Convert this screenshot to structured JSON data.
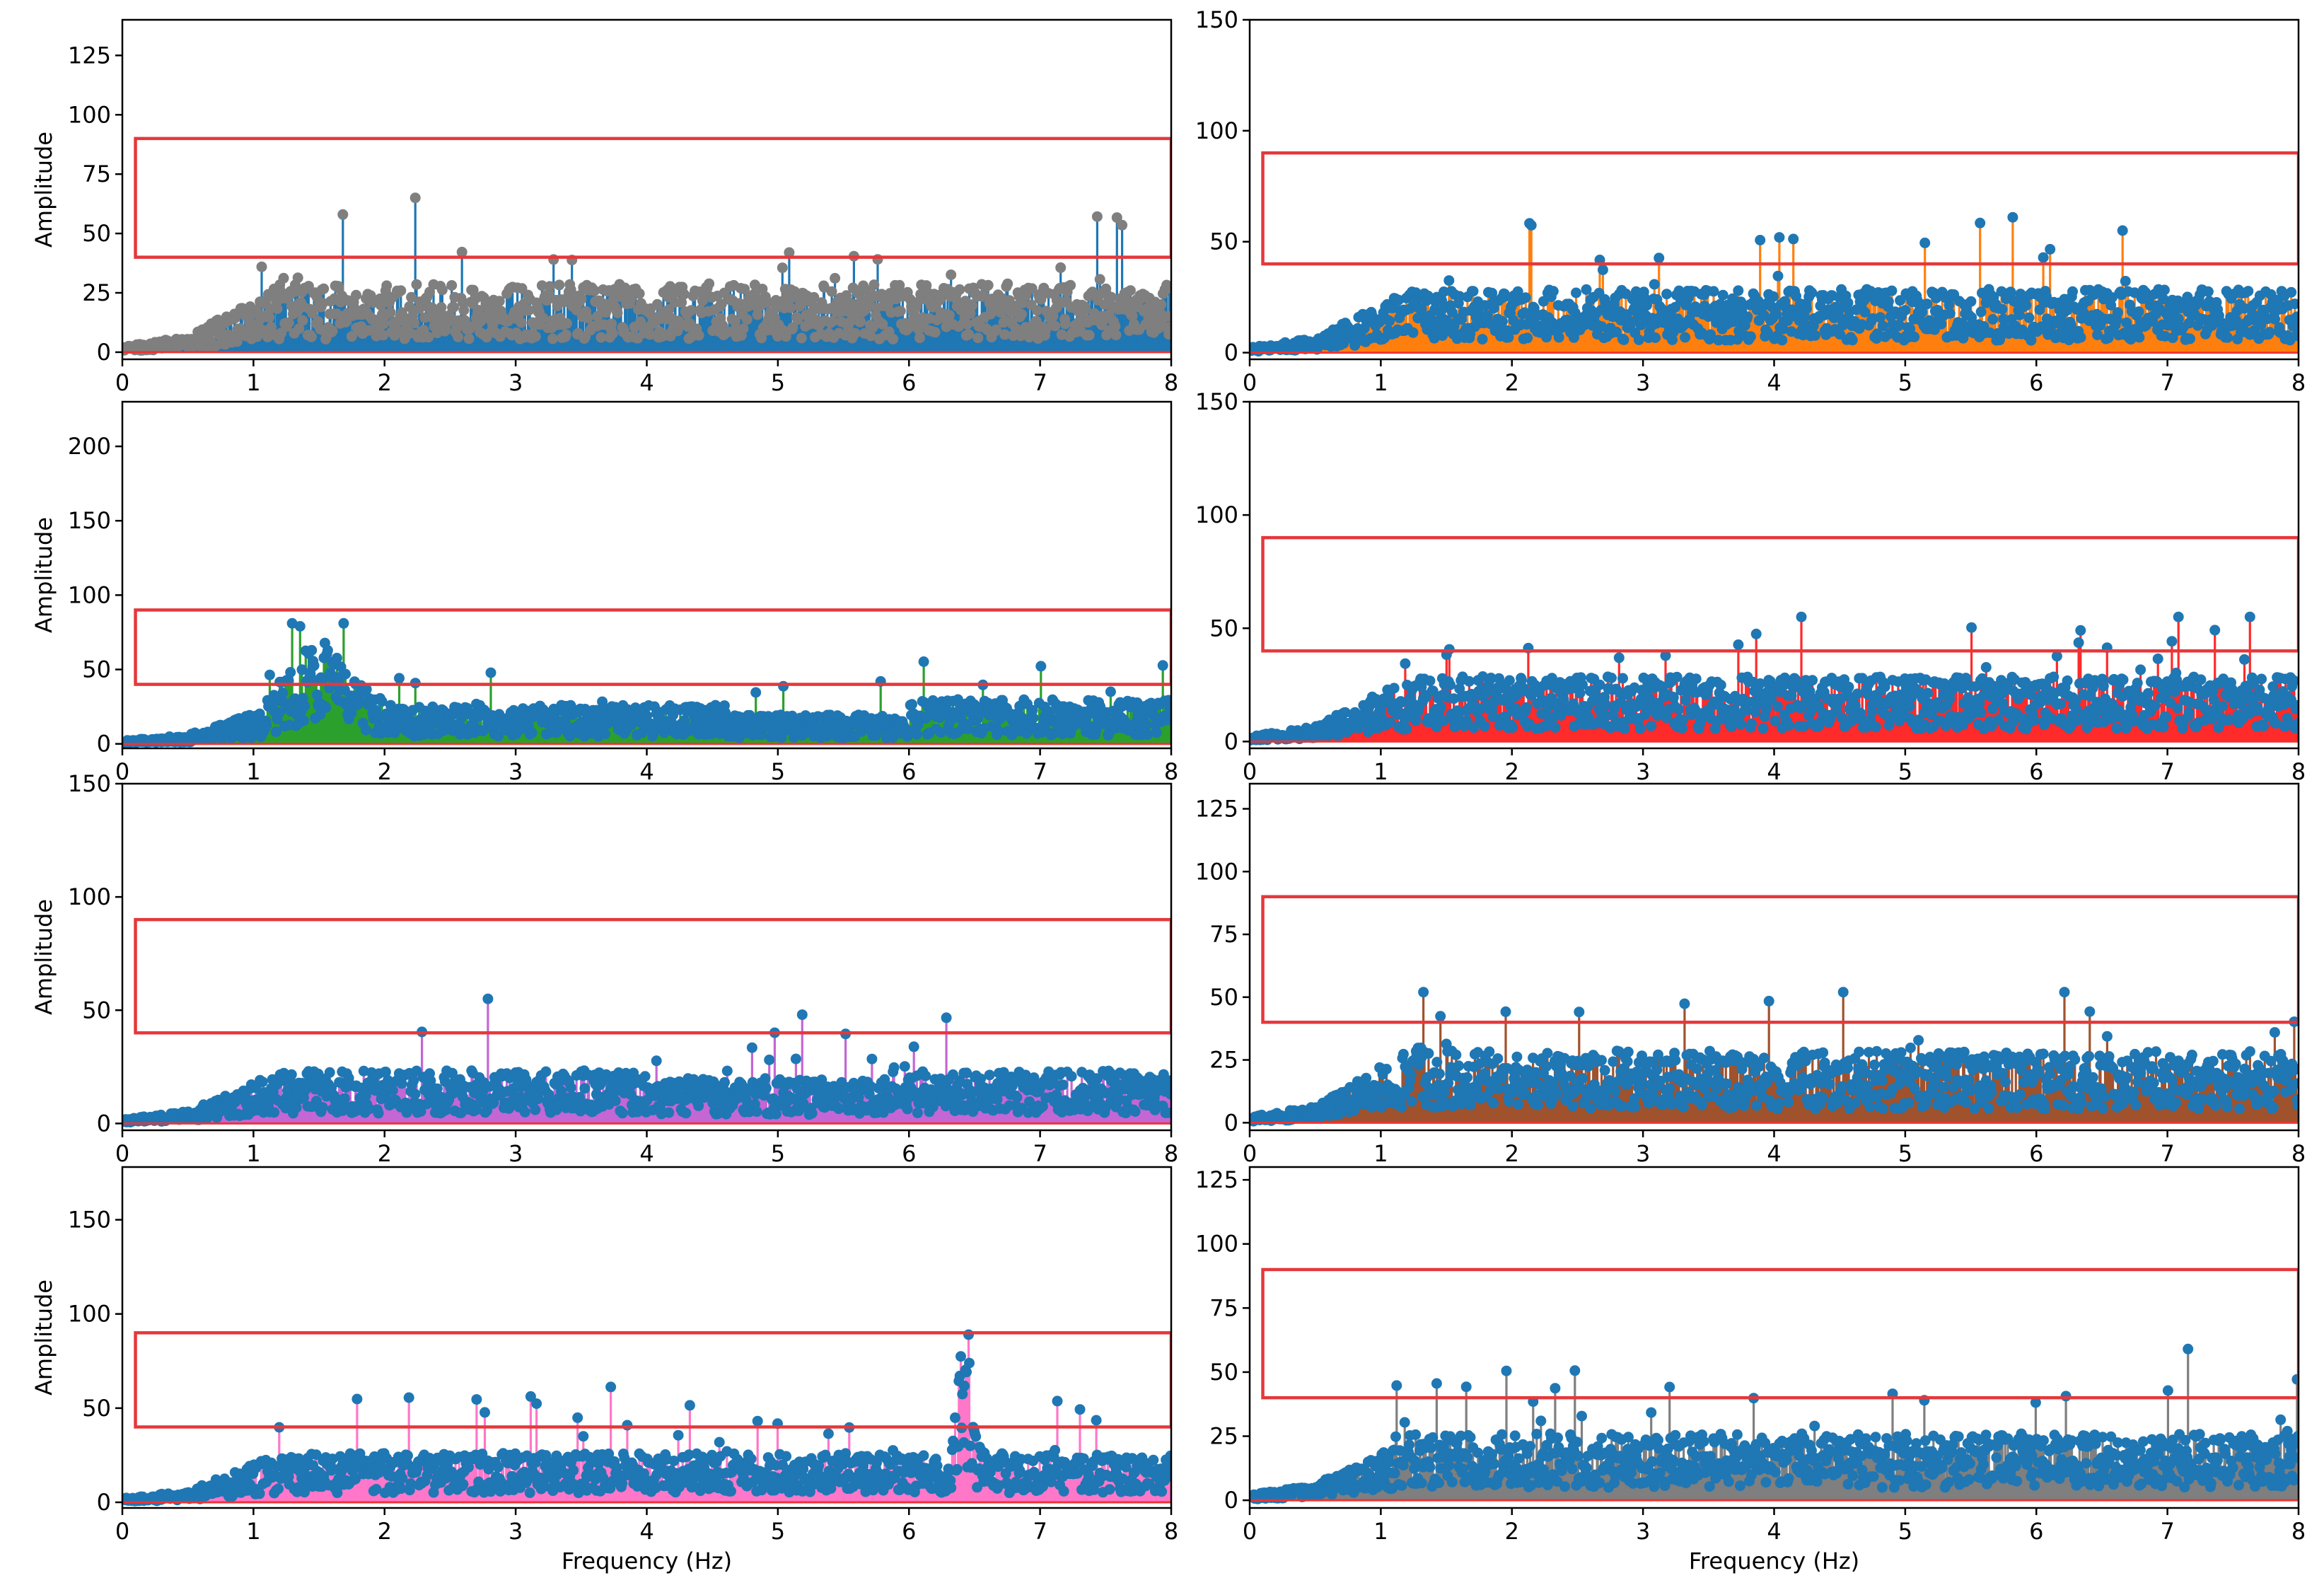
{
  "chart_data": [
    {
      "type": "stem",
      "id": "p1",
      "ylim": [
        -3,
        140
      ],
      "yticks": [
        0,
        25,
        50,
        75,
        100,
        125
      ],
      "xlim": [
        0,
        8
      ],
      "xticks": [
        0,
        1,
        2,
        3,
        4,
        5,
        6,
        7,
        8
      ],
      "ylabel": "Amplitude",
      "xlabel": "",
      "stem_color": "#1f77b4",
      "marker_color": "#7f7f7f",
      "base_color": "#1f77b4",
      "band": [
        40,
        90
      ],
      "band_x": [
        0.1,
        8
      ],
      "typical_level": 22,
      "max_peak": 65
    },
    {
      "type": "stem",
      "id": "p2",
      "ylim": [
        -3,
        150
      ],
      "yticks": [
        0,
        50,
        100,
        150
      ],
      "xlim": [
        0,
        8
      ],
      "xticks": [
        0,
        1,
        2,
        3,
        4,
        5,
        6,
        7,
        8
      ],
      "ylabel": "",
      "xlabel": "",
      "stem_color": "#ff7f0e",
      "marker_color": "#1f77b4",
      "base_color": "#ff7f0e",
      "band": [
        40,
        90
      ],
      "band_x": [
        0.1,
        8
      ],
      "typical_level": 22,
      "max_peak": 61
    },
    {
      "type": "stem",
      "id": "p3",
      "ylim": [
        -3,
        230
      ],
      "yticks": [
        0,
        50,
        100,
        150,
        200
      ],
      "xlim": [
        0,
        8
      ],
      "xticks": [
        0,
        1,
        2,
        3,
        4,
        5,
        6,
        7,
        8
      ],
      "ylabel": "Amplitude",
      "xlabel": "",
      "stem_color": "#2ca02c",
      "marker_color": "#1f77b4",
      "base_color": "#2ca02c",
      "band": [
        40,
        90
      ],
      "band_x": [
        0.1,
        8
      ],
      "typical_level": 20,
      "max_peak": 81
    },
    {
      "type": "stem",
      "id": "p4",
      "ylim": [
        -3,
        150
      ],
      "yticks": [
        0,
        50,
        100,
        150
      ],
      "xlim": [
        0,
        8
      ],
      "xticks": [
        0,
        1,
        2,
        3,
        4,
        5,
        6,
        7,
        8
      ],
      "ylabel": "",
      "xlabel": "",
      "stem_color": "#ff2a2a",
      "marker_color": "#1f77b4",
      "base_color": "#ff2a2a",
      "band": [
        40,
        90
      ],
      "band_x": [
        0.1,
        8
      ],
      "typical_level": 22,
      "max_peak": 55
    },
    {
      "type": "stem",
      "id": "p5",
      "ylim": [
        -3,
        150
      ],
      "yticks": [
        0,
        50,
        100,
        150
      ],
      "xlim": [
        0,
        8
      ],
      "xticks": [
        0,
        1,
        2,
        3,
        4,
        5,
        6,
        7,
        8
      ],
      "ylabel": "Amplitude",
      "xlabel": "",
      "stem_color": "#c466d4",
      "marker_color": "#1f77b4",
      "base_color": "#c466d4",
      "band": [
        40,
        90
      ],
      "band_x": [
        0.1,
        8
      ],
      "typical_level": 18,
      "max_peak": 55
    },
    {
      "type": "stem",
      "id": "p6",
      "ylim": [
        -3,
        135
      ],
      "yticks": [
        0,
        25,
        50,
        75,
        100,
        125
      ],
      "xlim": [
        0,
        8
      ],
      "xticks": [
        0,
        1,
        2,
        3,
        4,
        5,
        6,
        7,
        8
      ],
      "ylabel": "",
      "xlabel": "",
      "stem_color": "#a0522d",
      "marker_color": "#1f77b4",
      "base_color": "#a0522d",
      "band": [
        40,
        90
      ],
      "band_x": [
        0.1,
        8
      ],
      "typical_level": 22,
      "max_peak": 52
    },
    {
      "type": "stem",
      "id": "p7",
      "ylim": [
        -3,
        178
      ],
      "yticks": [
        0,
        50,
        100,
        150
      ],
      "xlim": [
        0,
        8
      ],
      "xticks": [
        0,
        1,
        2,
        3,
        4,
        5,
        6,
        7,
        8
      ],
      "ylabel": "Amplitude",
      "xlabel": "Frequency (Hz)",
      "stem_color": "#ff77c8",
      "marker_color": "#1f77b4",
      "base_color": "#ff77c8",
      "band": [
        40,
        90
      ],
      "band_x": [
        0.1,
        8
      ],
      "typical_level": 20,
      "max_peak": 89,
      "resonance_peak_hz": 6.4
    },
    {
      "type": "stem",
      "id": "p8",
      "ylim": [
        -3,
        130
      ],
      "yticks": [
        0,
        25,
        50,
        75,
        100,
        125
      ],
      "xlim": [
        0,
        8
      ],
      "xticks": [
        0,
        1,
        2,
        3,
        4,
        5,
        6,
        7,
        8
      ],
      "ylabel": "",
      "xlabel": "Frequency (Hz)",
      "stem_color": "#7f7f7f",
      "marker_color": "#1f77b4",
      "base_color": "#7f7f7f",
      "band": [
        40,
        90
      ],
      "band_x": [
        0.1,
        8
      ],
      "typical_level": 20,
      "max_peak": 59
    }
  ]
}
